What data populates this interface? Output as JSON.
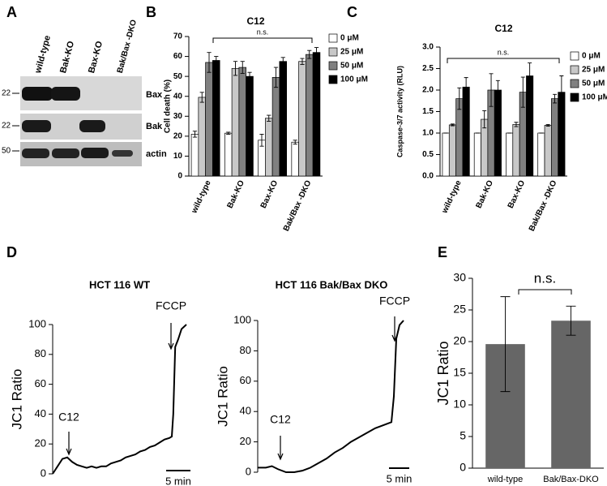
{
  "blot": {
    "panel": "A",
    "lanes": [
      "wild-type",
      "Bak-KO",
      "Bax-KO",
      "Bak/Bax -DKO"
    ],
    "proteins": [
      "Bax",
      "Bak",
      "actin"
    ],
    "markers": [
      "22",
      "22",
      "50"
    ]
  },
  "chart_data": [
    {
      "panel": "B",
      "type": "bar",
      "title": "C12",
      "y_label": "Cell death (%)",
      "categories": [
        "wild-type",
        "Bak-KO",
        "Bax-KO",
        "Bak/Bax -DKO"
      ],
      "series": [
        {
          "name": "0 μM",
          "color": "#ffffff",
          "values": [
            21,
            21.5,
            18,
            17
          ],
          "errors": [
            1.5,
            0.5,
            3,
            1
          ]
        },
        {
          "name": "25 μM",
          "color": "#c8c8c8",
          "values": [
            39.5,
            54,
            29,
            57.5
          ],
          "errors": [
            2.5,
            3.5,
            1.5,
            1.5
          ]
        },
        {
          "name": "50 μM",
          "color": "#808080",
          "values": [
            57,
            54.5,
            49.5,
            61
          ],
          "errors": [
            5,
            3,
            5,
            2
          ]
        },
        {
          "name": "100 μM",
          "color": "#000000",
          "values": [
            58,
            50,
            57.5,
            62
          ],
          "errors": [
            2,
            2,
            2,
            2.5
          ]
        }
      ],
      "ylim": [
        0,
        70
      ],
      "yticks": [
        0,
        10,
        20,
        30,
        40,
        50,
        60,
        70
      ],
      "annotation": "n.s."
    },
    {
      "panel": "C",
      "type": "bar",
      "title": "C12",
      "y_label": "Caspase-3/7 activity (RLU)",
      "categories": [
        "wild-type",
        "Bak-KO",
        "Bax-KO",
        "Bak/Bax -DKO"
      ],
      "series": [
        {
          "name": "0 μM",
          "color": "#ffffff",
          "values": [
            1.0,
            1.0,
            1.0,
            1.0
          ],
          "errors": [
            0,
            0,
            0,
            0
          ]
        },
        {
          "name": "25 μM",
          "color": "#c8c8c8",
          "values": [
            1.19,
            1.32,
            1.2,
            1.18
          ],
          "errors": [
            0.02,
            0.2,
            0.05,
            0.02
          ]
        },
        {
          "name": "50 μM",
          "color": "#808080",
          "values": [
            1.8,
            2.0,
            1.95,
            1.8
          ],
          "errors": [
            0.25,
            0.38,
            0.35,
            0.1
          ]
        },
        {
          "name": "100 μM",
          "color": "#000000",
          "values": [
            2.07,
            2.0,
            2.33,
            1.95
          ],
          "errors": [
            0.22,
            0.22,
            0.3,
            0.38
          ]
        }
      ],
      "ylim": [
        0,
        3
      ],
      "yticks": [
        {
          "value": 0,
          "label": "0.0"
        },
        {
          "value": 0.5,
          "label": "0.5"
        },
        {
          "value": 1,
          "label": "1.0"
        },
        {
          "value": 1.5,
          "label": "1.5"
        },
        {
          "value": 2,
          "label": "2.0"
        },
        {
          "value": 2.5,
          "label": "2.5"
        },
        {
          "value": 3,
          "label": "3.0"
        }
      ],
      "annotation": "n.s."
    },
    {
      "panel": "D",
      "type": "line",
      "title": "HCT 116 WT",
      "y_label": "JC1 Ratio",
      "x": [
        0,
        1,
        2,
        3,
        4,
        5,
        6,
        7,
        8,
        9,
        10,
        11,
        12,
        13,
        14,
        15,
        16,
        17,
        18,
        19,
        20,
        21,
        22,
        23,
        24,
        24.5,
        24.8,
        25.2,
        25.8,
        26.5,
        27.5
      ],
      "values": [
        0,
        5,
        10,
        11,
        8,
        6,
        5,
        4,
        5,
        4,
        5,
        5,
        7,
        8,
        9,
        11,
        12,
        13,
        15,
        16,
        18,
        19,
        21,
        23,
        24,
        25,
        40,
        85,
        90,
        97,
        100
      ],
      "color": "#000000",
      "xlim": [
        0,
        27.5
      ],
      "ylim": [
        0,
        100
      ],
      "yticks": [
        0,
        20,
        40,
        60,
        80,
        100
      ],
      "annotations": [
        "C12",
        "FCCP"
      ],
      "scale_bar": {
        "label": "5 min",
        "length": 5
      }
    },
    {
      "type": "line",
      "title": "HCT 116 Bak/Bax DKO",
      "y_label": "JC1 Ratio",
      "x": [
        0,
        2,
        3.5,
        5,
        7,
        9,
        11,
        13,
        15,
        17,
        19,
        21,
        23,
        25,
        27,
        29,
        31,
        33,
        33.6,
        34.2,
        35,
        36
      ],
      "values": [
        3,
        3,
        4,
        2,
        0,
        0,
        1,
        3,
        6,
        9,
        13,
        16,
        20,
        23,
        26,
        29,
        31,
        33,
        50,
        88,
        97,
        100
      ],
      "color": "#000000",
      "xlim": [
        0,
        36.4
      ],
      "ylim": [
        0,
        100
      ],
      "yticks": [
        0,
        20,
        40,
        60,
        80,
        100
      ],
      "annotations": [
        "C12",
        "FCCP"
      ],
      "scale_bar": {
        "label": "5 min",
        "length": 5
      }
    },
    {
      "panel": "E",
      "type": "bar",
      "y_label": "JC1 Ratio",
      "categories": [
        "wild-type",
        "Bak/Bax-DKO"
      ],
      "values": [
        19.6,
        23.3
      ],
      "errors": [
        7.5,
        2.3
      ],
      "color": "#666666",
      "ylim": [
        0,
        30
      ],
      "yticks": [
        0,
        5,
        10,
        15,
        20,
        25,
        30
      ],
      "annotation": "n.s."
    }
  ]
}
